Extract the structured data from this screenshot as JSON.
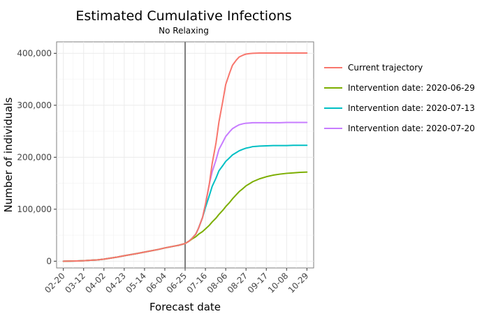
{
  "chart_data": {
    "type": "line",
    "title": "Estimated Cumulative Infections",
    "subtitle": "No Relaxing",
    "xlabel": "Forecast date",
    "ylabel": "Number of individuals",
    "x_tick_labels": [
      "02-20",
      "03-12",
      "04-02",
      "04-23",
      "05-14",
      "06-04",
      "06-25",
      "07-16",
      "08-06",
      "08-27",
      "09-17",
      "10-08",
      "10-29"
    ],
    "y_tick_labels": [
      "0",
      "100,000",
      "200,000",
      "300,000",
      "400,000"
    ],
    "y_ticks": [
      0,
      100000,
      200000,
      300000,
      400000
    ],
    "ylim": [
      -13000,
      422000
    ],
    "xlim": [
      "2020-02-13",
      "2020-11-05"
    ],
    "grid": true,
    "legend_position": "right",
    "vline": {
      "x": "2020-06-25",
      "color": "#7f7f7f"
    },
    "x": [
      "2020-02-20",
      "2020-03-05",
      "2020-03-12",
      "2020-03-26",
      "2020-04-02",
      "2020-04-16",
      "2020-04-23",
      "2020-05-07",
      "2020-05-14",
      "2020-05-28",
      "2020-06-04",
      "2020-06-18",
      "2020-06-25",
      "2020-06-29",
      "2020-07-02",
      "2020-07-06",
      "2020-07-09",
      "2020-07-13",
      "2020-07-16",
      "2020-07-20",
      "2020-07-23",
      "2020-07-27",
      "2020-07-30",
      "2020-08-03",
      "2020-08-06",
      "2020-08-10",
      "2020-08-13",
      "2020-08-17",
      "2020-08-20",
      "2020-08-24",
      "2020-08-27",
      "2020-08-31",
      "2020-09-03",
      "2020-09-10",
      "2020-09-17",
      "2020-09-24",
      "2020-10-01",
      "2020-10-08",
      "2020-10-15",
      "2020-10-22",
      "2020-10-29"
    ],
    "series": [
      {
        "name": "Current trajectory",
        "color": "#F8766D",
        "values": [
          0,
          500,
          1000,
          2500,
          4000,
          8000,
          10500,
          15000,
          17500,
          22500,
          25500,
          30500,
          34000,
          38500,
          43500,
          52000,
          64000,
          84000,
          109000,
          148000,
          188000,
          228000,
          268000,
          308000,
          340000,
          362000,
          377000,
          387000,
          393000,
          396500,
          398500,
          399500,
          400000,
          400500,
          400500,
          400500,
          400500,
          400500,
          400500,
          400500,
          400500
        ]
      },
      {
        "name": "Intervention date: 2020-06-29",
        "color": "#7CAE00",
        "values": [
          0,
          500,
          1000,
          2500,
          4000,
          8000,
          10500,
          15000,
          17500,
          22500,
          25500,
          30500,
          34000,
          38500,
          42500,
          47000,
          52000,
          57000,
          62000,
          69000,
          75500,
          83000,
          90000,
          98000,
          105000,
          113000,
          120000,
          128000,
          134000,
          140000,
          145000,
          149500,
          153000,
          158500,
          162500,
          165500,
          167500,
          169000,
          170000,
          171000,
          171500
        ]
      },
      {
        "name": "Intervention date: 2020-07-13",
        "color": "#00BFC4",
        "values": [
          0,
          500,
          1000,
          2500,
          4000,
          8000,
          10500,
          15000,
          17500,
          22500,
          25500,
          30500,
          34000,
          38500,
          43500,
          52000,
          64000,
          84000,
          103000,
          126000,
          144000,
          160000,
          174000,
          184000,
          192000,
          199000,
          204500,
          209000,
          212500,
          215500,
          217500,
          219000,
          220500,
          221500,
          222000,
          222500,
          222500,
          222500,
          223000,
          223000,
          223000
        ]
      },
      {
        "name": "Intervention date: 2020-07-20",
        "color": "#C77CFF",
        "values": [
          0,
          500,
          1000,
          2500,
          4000,
          8000,
          10500,
          15000,
          17500,
          22500,
          25500,
          30500,
          34000,
          38500,
          43500,
          52000,
          64000,
          84000,
          109000,
          148000,
          172000,
          195000,
          215000,
          229000,
          240000,
          249000,
          255000,
          259500,
          262500,
          264500,
          265500,
          266000,
          266500,
          266500,
          266500,
          266500,
          266500,
          267000,
          267000,
          267000,
          267000
        ]
      }
    ]
  }
}
